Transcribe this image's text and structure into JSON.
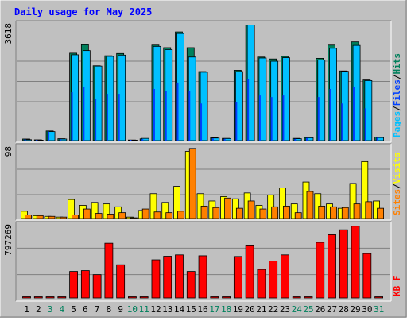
{
  "colors": {
    "background": "#C0C0C0",
    "title": "#0000FF",
    "hits": "#00805C",
    "files": "#0040FF",
    "pages": "#00C0FF",
    "visits": "#FFFF00",
    "sites": "#FF8000",
    "kbytes": "#FF0000",
    "weekend_label": "#00805C"
  },
  "chart_data": [
    {
      "type": "bar",
      "title": "Daily usage for May 2025",
      "ylabel": "3618",
      "legend": [
        {
          "label": "Pages",
          "color": "#00C0FF"
        },
        {
          "label": "Files",
          "color": "#0040FF"
        },
        {
          "label": "Hits",
          "color": "#00805C"
        }
      ],
      "ylim": [
        0,
        3618
      ],
      "grid": true,
      "categories": [
        "1",
        "2",
        "3",
        "4",
        "5",
        "6",
        "7",
        "8",
        "9",
        "10",
        "11",
        "12",
        "13",
        "14",
        "15",
        "16",
        "17",
        "18",
        "19",
        "20",
        "21",
        "22",
        "23",
        "24",
        "25",
        "26",
        "27",
        "28",
        "29",
        "30",
        "31"
      ],
      "series": [
        {
          "name": "Hits",
          "values": [
            50,
            25,
            300,
            60,
            2710,
            2970,
            2320,
            2630,
            2700,
            20,
            55,
            2960,
            2880,
            3370,
            2880,
            2140,
            90,
            70,
            2180,
            3580,
            2590,
            2530,
            2610,
            70,
            100,
            2550,
            2960,
            2160,
            3060,
            1880,
            110
          ]
        },
        {
          "name": "Files",
          "values": [
            40,
            20,
            280,
            50,
            1500,
            1650,
            1300,
            1450,
            1450,
            15,
            45,
            1600,
            1550,
            1800,
            1550,
            1150,
            70,
            55,
            1200,
            1900,
            1400,
            1350,
            1400,
            55,
            80,
            1350,
            1600,
            1150,
            1650,
            1000,
            90
          ]
        },
        {
          "name": "Pages",
          "values": [
            30,
            15,
            280,
            50,
            2660,
            2790,
            2310,
            2610,
            2650,
            15,
            70,
            2920,
            2820,
            3320,
            2590,
            2120,
            80,
            65,
            2140,
            3580,
            2560,
            2460,
            2570,
            60,
            90,
            2500,
            2860,
            2150,
            2950,
            1860,
            95
          ]
        }
      ]
    },
    {
      "type": "bar",
      "ylabel": "98",
      "legend": [
        {
          "label": "Sites",
          "color": "#FF8000"
        },
        {
          "label": "Visits",
          "color": "#FFFF00"
        }
      ],
      "ylim": [
        0,
        98
      ],
      "grid": true,
      "categories": [
        "1",
        "2",
        "3",
        "4",
        "5",
        "6",
        "7",
        "8",
        "9",
        "10",
        "11",
        "12",
        "13",
        "14",
        "15",
        "16",
        "17",
        "18",
        "19",
        "20",
        "21",
        "22",
        "23",
        "24",
        "25",
        "26",
        "27",
        "28",
        "29",
        "30",
        "31"
      ],
      "series": [
        {
          "name": "Visits",
          "values": [
            10,
            4,
            3,
            2,
            26,
            18,
            22,
            20,
            16,
            2,
            11,
            34,
            22,
            44,
            92,
            34,
            24,
            30,
            27,
            35,
            18,
            32,
            42,
            20,
            50,
            34,
            20,
            14,
            48,
            78,
            24
          ]
        },
        {
          "name": "Sites",
          "values": [
            5,
            4,
            3,
            2,
            5,
            13,
            7,
            6,
            8,
            1,
            13,
            9,
            8,
            10,
            96,
            17,
            15,
            28,
            14,
            24,
            13,
            16,
            17,
            8,
            37,
            17,
            16,
            15,
            20,
            23,
            14
          ]
        }
      ]
    },
    {
      "type": "bar",
      "ylabel": "797269",
      "legend": [
        {
          "label": "KB F",
          "color": "#FF0000"
        }
      ],
      "ylim": [
        0,
        797269
      ],
      "grid": true,
      "categories": [
        "1",
        "2",
        "3",
        "4",
        "5",
        "6",
        "7",
        "8",
        "9",
        "10",
        "11",
        "12",
        "13",
        "14",
        "15",
        "16",
        "17",
        "18",
        "19",
        "20",
        "21",
        "22",
        "23",
        "24",
        "25",
        "26",
        "27",
        "28",
        "29",
        "30",
        "31"
      ],
      "series": [
        {
          "name": "KB F",
          "values": [
            0,
            0,
            0,
            0,
            296000,
            305000,
            260000,
            610000,
            370000,
            0,
            0,
            425000,
            465000,
            480000,
            296000,
            470000,
            0,
            0,
            462000,
            590000,
            318000,
            412000,
            480000,
            0,
            0,
            620000,
            705000,
            760000,
            800000,
            495000,
            0
          ]
        }
      ]
    }
  ]
}
